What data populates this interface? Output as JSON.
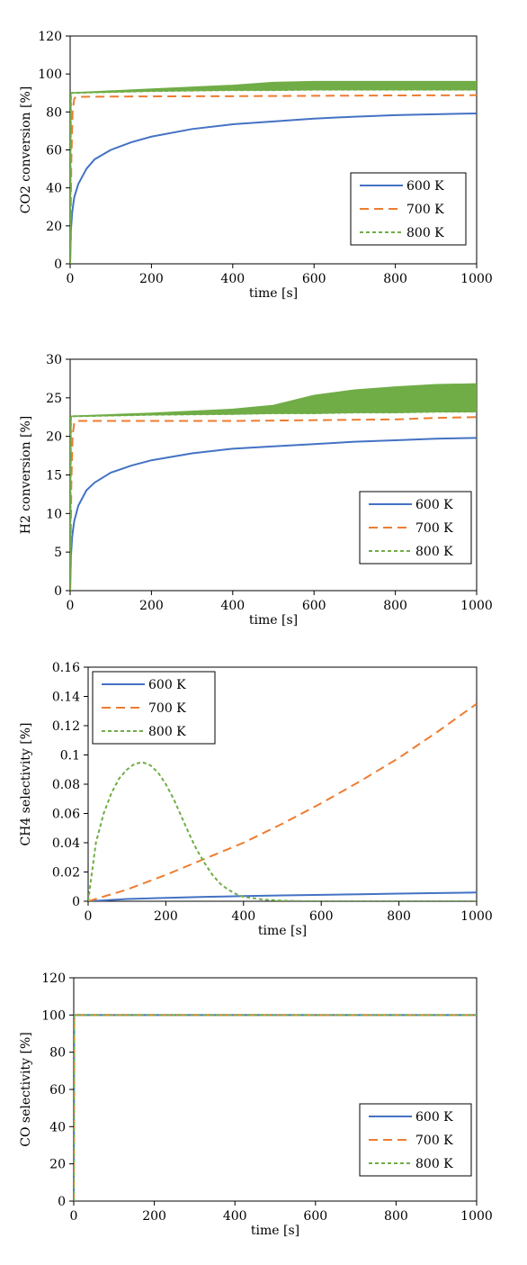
{
  "colors": {
    "s600": "#4472C4",
    "s700": "#ED7D31",
    "s800": "#70AD47"
  },
  "chart_data": [
    {
      "type": "line",
      "ylabel": "CO2 conversion [%]",
      "xlabel": "time [s]",
      "xlim": [
        0,
        1000
      ],
      "ylim": [
        0,
        120
      ],
      "xticks": [
        0,
        200,
        400,
        600,
        800,
        1000
      ],
      "yticks": [
        0,
        20,
        40,
        60,
        80,
        100,
        120
      ],
      "grid": false,
      "legend_position": "bottom-right",
      "series": [
        {
          "name": "600 K",
          "style": "solid",
          "color": "#4472C4",
          "x": [
            0,
            2,
            5,
            10,
            20,
            40,
            60,
            100,
            150,
            200,
            300,
            400,
            500,
            600,
            700,
            800,
            900,
            1000
          ],
          "y": [
            0,
            18,
            27,
            35,
            42,
            50,
            55,
            60,
            64,
            67,
            71,
            73.5,
            75,
            76.5,
            77.5,
            78.3,
            78.8,
            79.2
          ]
        },
        {
          "name": "700 K",
          "style": "dashed",
          "color": "#ED7D31",
          "x": [
            0,
            3,
            6,
            10,
            15,
            200,
            400,
            600,
            800,
            1000
          ],
          "y": [
            0,
            55,
            80,
            87,
            88,
            88.2,
            88.3,
            88.5,
            88.7,
            88.8
          ]
        },
        {
          "name": "800 K",
          "style": "dotted",
          "color": "#70AD47",
          "x": [
            0,
            2,
            200,
            400,
            500,
            600,
            800,
            1000
          ],
          "y": [
            0,
            90,
            91,
            91.5,
            91.5,
            91.7,
            91.7,
            91.7
          ],
          "y_upper": [
            0,
            90,
            92,
            94,
            95.5,
            96,
            96,
            96
          ]
        }
      ]
    },
    {
      "type": "line",
      "ylabel": "H2 conversion [%]",
      "xlabel": "time [s]",
      "xlim": [
        0,
        1000
      ],
      "ylim": [
        0,
        30
      ],
      "xticks": [
        0,
        200,
        400,
        600,
        800,
        1000
      ],
      "yticks": [
        0,
        5,
        10,
        15,
        20,
        25,
        30
      ],
      "grid": false,
      "legend_position": "bottom-right",
      "series": [
        {
          "name": "600 K",
          "style": "solid",
          "color": "#4472C4",
          "x": [
            0,
            2,
            5,
            10,
            20,
            40,
            60,
            100,
            150,
            200,
            300,
            400,
            500,
            600,
            700,
            800,
            900,
            1000
          ],
          "y": [
            0,
            4.5,
            7,
            9,
            11,
            13,
            14,
            15.3,
            16.2,
            16.9,
            17.8,
            18.4,
            18.7,
            19,
            19.3,
            19.5,
            19.7,
            19.8
          ]
        },
        {
          "name": "700 K",
          "style": "dashed",
          "color": "#ED7D31",
          "x": [
            0,
            3,
            6,
            10,
            15,
            200,
            400,
            600,
            800,
            900,
            1000
          ],
          "y": [
            0,
            14,
            20,
            21.8,
            22,
            22,
            22,
            22.1,
            22.2,
            22.4,
            22.5
          ]
        },
        {
          "name": "800 K",
          "style": "dotted",
          "color": "#70AD47",
          "x": [
            0,
            2,
            200,
            400,
            500,
            600,
            700,
            800,
            900,
            1000
          ],
          "y": [
            0,
            22.6,
            22.8,
            22.9,
            23,
            23,
            23.1,
            23.1,
            23.2,
            23.2
          ],
          "y_upper": [
            0,
            22.6,
            23,
            23.5,
            24,
            25.3,
            26,
            26.4,
            26.7,
            26.8
          ]
        }
      ]
    },
    {
      "type": "line",
      "ylabel": "CH4 selectivity [%]",
      "xlabel": "time [s]",
      "xlim": [
        0,
        1000
      ],
      "ylim": [
        0,
        0.16
      ],
      "xticks": [
        0,
        200,
        400,
        600,
        800,
        1000
      ],
      "yticks": [
        0,
        0.02,
        0.04,
        0.06,
        0.08,
        0.1,
        0.12,
        0.14,
        0.16
      ],
      "grid": false,
      "legend_position": "top-left",
      "series": [
        {
          "name": "600 K",
          "style": "solid",
          "color": "#4472C4",
          "x": [
            0,
            100,
            200,
            300,
            400,
            500,
            600,
            700,
            800,
            900,
            1000
          ],
          "y": [
            0,
            0.0015,
            0.0023,
            0.003,
            0.0035,
            0.004,
            0.0044,
            0.0048,
            0.0052,
            0.0056,
            0.006
          ]
        },
        {
          "name": "700 K",
          "style": "dashed",
          "color": "#ED7D31",
          "x": [
            0,
            100,
            200,
            300,
            400,
            500,
            600,
            700,
            800,
            900,
            1000
          ],
          "y": [
            0,
            0.008,
            0.018,
            0.029,
            0.04,
            0.053,
            0.067,
            0.082,
            0.098,
            0.116,
            0.135
          ]
        },
        {
          "name": "800 K",
          "style": "dotted",
          "color": "#70AD47",
          "x": [
            0,
            20,
            40,
            60,
            80,
            100,
            120,
            140,
            160,
            180,
            200,
            220,
            240,
            260,
            280,
            300,
            320,
            340,
            360,
            380,
            400,
            450,
            500,
            550,
            600,
            1000
          ],
          "y": [
            0,
            0.04,
            0.06,
            0.074,
            0.084,
            0.09,
            0.094,
            0.095,
            0.093,
            0.088,
            0.08,
            0.07,
            0.058,
            0.046,
            0.035,
            0.026,
            0.018,
            0.012,
            0.008,
            0.005,
            0.003,
            0.0012,
            0.0004,
            0.0001,
            0,
            0
          ]
        }
      ]
    },
    {
      "type": "line",
      "ylabel": "CO selectivity [%]",
      "xlabel": "time [s]",
      "xlim": [
        0,
        1000
      ],
      "ylim": [
        0,
        120
      ],
      "xticks": [
        0,
        200,
        400,
        600,
        800,
        1000
      ],
      "yticks": [
        0,
        20,
        40,
        60,
        80,
        100,
        120
      ],
      "grid": false,
      "legend_position": "bottom-right",
      "series": [
        {
          "name": "600 K",
          "style": "solid",
          "color": "#4472C4",
          "x": [
            0,
            1,
            1000
          ],
          "y": [
            0,
            100,
            99.99
          ]
        },
        {
          "name": "700 K",
          "style": "dashed",
          "color": "#ED7D31",
          "x": [
            0,
            1,
            1000
          ],
          "y": [
            0,
            100,
            99.9
          ]
        },
        {
          "name": "800 K",
          "style": "dotted",
          "color": "#70AD47",
          "x": [
            0,
            1,
            1000
          ],
          "y": [
            0,
            100,
            100
          ]
        }
      ]
    }
  ]
}
